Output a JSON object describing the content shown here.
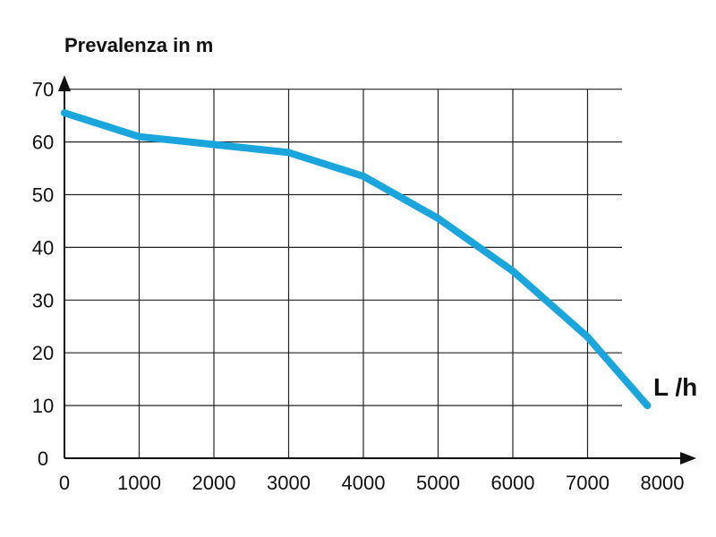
{
  "chart_data": {
    "type": "line",
    "ylabel": "Prevalenza in m",
    "xlabel": "L /h",
    "x_ticks": [
      "0",
      "1000",
      "2000",
      "3000",
      "4000",
      "5000",
      "6000",
      "7000",
      "8000"
    ],
    "y_ticks": [
      "0",
      "10",
      "20",
      "30",
      "40",
      "50",
      "60",
      "70"
    ],
    "xlim": [
      0,
      8000
    ],
    "ylim": [
      0,
      70
    ],
    "grid": true,
    "line_color": "#1aa5dc",
    "series": [
      {
        "x": [
          0,
          1000,
          2000,
          3000,
          4000,
          5000,
          6000,
          7000,
          7800
        ],
        "y": [
          65.5,
          61,
          59.5,
          58,
          53.5,
          45.5,
          35.5,
          23,
          10
        ]
      }
    ]
  }
}
